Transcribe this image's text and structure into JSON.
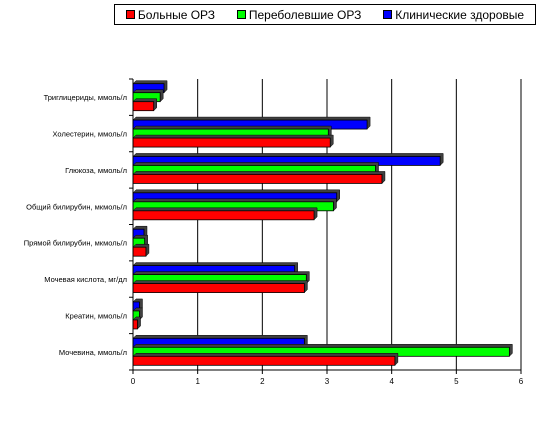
{
  "chart_data": {
    "type": "bar",
    "orientation": "horizontal",
    "categories": [
      "Триглицериды, ммоль/л",
      "Холестерин, ммоль/л",
      "Глюкоза, ммоль/л",
      "Общий билирубин, мкмоль/л",
      "Прямой билирубин, мкмоль/л",
      "Мочевая кислота, мг/дл",
      "Креатин, ммоль/л",
      "Мочевина, ммоль/л"
    ],
    "series": [
      {
        "name": "Больные ОРЗ",
        "color": "#ff0000",
        "values": [
          0.32,
          3.05,
          3.85,
          2.8,
          0.2,
          2.65,
          0.07,
          4.05
        ]
      },
      {
        "name": "Переболевшие ОРЗ",
        "color": "#00ff00",
        "values": [
          0.42,
          3.02,
          3.75,
          3.1,
          0.18,
          2.68,
          0.1,
          5.82
        ]
      },
      {
        "name": "Клинические здоровые",
        "color": "#0000ff",
        "values": [
          0.48,
          3.62,
          4.75,
          3.15,
          0.17,
          2.5,
          0.1,
          2.65
        ]
      }
    ],
    "xticks": [
      "0",
      "1",
      "2",
      "3",
      "4",
      "5",
      "6"
    ],
    "xlim": [
      0,
      6
    ],
    "grid": "vertical",
    "legend": "top",
    "title": "",
    "xlabel": "",
    "ylabel": ""
  }
}
